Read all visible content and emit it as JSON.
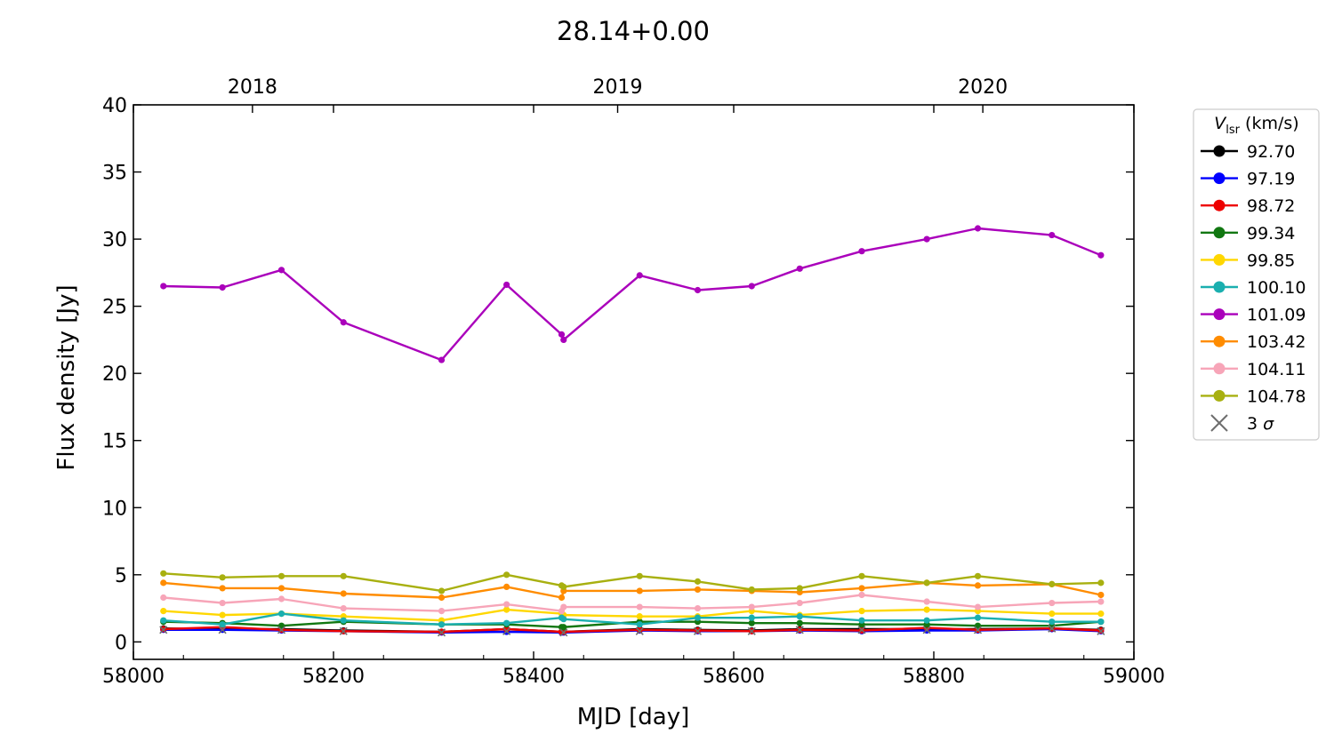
{
  "chart_data": {
    "type": "line",
    "title": "28.14+0.00",
    "xlabel": "MJD [day]",
    "ylabel": "Flux density [Jy]",
    "xlim": [
      58000,
      59000
    ],
    "ylim": [
      -1.3,
      40
    ],
    "xticks": [
      58000,
      58200,
      58400,
      58600,
      58800,
      59000
    ],
    "yticks": [
      0,
      5,
      10,
      15,
      20,
      25,
      30,
      35,
      40
    ],
    "top_axis": {
      "labels": [
        {
          "text": "2018",
          "mjd": 58119
        },
        {
          "text": "2019",
          "mjd": 58484
        },
        {
          "text": "2020",
          "mjd": 58849
        }
      ]
    },
    "grid": false,
    "legend": {
      "placement": "outside-right",
      "title_main": "V",
      "title_sub": "lsr",
      "title_unit": " (km/s)",
      "sigma_label_main": "3 ",
      "sigma_label_sym": "σ",
      "sigma_color": "#6e6e6e"
    },
    "x": [
      58030,
      58089,
      58148,
      58210,
      58308,
      58373,
      58428,
      58430,
      58506,
      58564,
      58618,
      58666,
      58728,
      58793,
      58844,
      58918,
      58967
    ],
    "series": [
      {
        "name": "92.70",
        "color": "#000000",
        "values": [
          1.0,
          0.95,
          0.95,
          0.85,
          0.75,
          0.95,
          0.75,
          0.75,
          0.95,
          0.9,
          0.85,
          0.95,
          0.95,
          0.95,
          0.95,
          1.0,
          0.9
        ]
      },
      {
        "name": "97.19",
        "color": "#0000ff",
        "values": [
          0.9,
          0.9,
          0.85,
          0.8,
          0.7,
          0.75,
          0.7,
          0.7,
          0.85,
          0.8,
          0.8,
          0.85,
          0.8,
          0.85,
          0.85,
          0.95,
          0.8
        ]
      },
      {
        "name": "98.72",
        "color": "#ee0000",
        "values": [
          0.95,
          1.1,
          0.9,
          0.8,
          0.75,
          0.95,
          0.75,
          0.75,
          0.9,
          0.85,
          0.8,
          0.9,
          0.85,
          1.05,
          0.9,
          1.0,
          0.85
        ]
      },
      {
        "name": "99.34",
        "color": "#117711",
        "values": [
          1.5,
          1.4,
          1.2,
          1.5,
          1.3,
          1.3,
          1.1,
          1.1,
          1.5,
          1.5,
          1.4,
          1.4,
          1.3,
          1.3,
          1.2,
          1.2,
          1.5
        ]
      },
      {
        "name": "99.85",
        "color": "#ffd700",
        "values": [
          2.3,
          2.0,
          2.1,
          1.9,
          1.6,
          2.4,
          2.1,
          2.0,
          1.9,
          1.9,
          2.3,
          2.0,
          2.3,
          2.4,
          2.3,
          2.1,
          2.1
        ]
      },
      {
        "name": "100.10",
        "color": "#1aafaf",
        "values": [
          1.6,
          1.3,
          2.1,
          1.6,
          1.3,
          1.4,
          1.8,
          1.7,
          1.3,
          1.8,
          1.8,
          1.9,
          1.6,
          1.6,
          1.8,
          1.5,
          1.5
        ]
      },
      {
        "name": "101.09",
        "color": "#aa00bb",
        "values": [
          26.5,
          26.4,
          27.7,
          23.8,
          21.0,
          26.6,
          22.9,
          22.5,
          27.3,
          26.2,
          26.5,
          27.8,
          29.1,
          30.0,
          30.8,
          30.3,
          28.8
        ]
      },
      {
        "name": "103.42",
        "color": "#ff8c00",
        "values": [
          4.4,
          4.0,
          4.0,
          3.6,
          3.3,
          4.1,
          3.3,
          3.8,
          3.8,
          3.9,
          3.8,
          3.7,
          4.0,
          4.4,
          4.2,
          4.3,
          3.5
        ]
      },
      {
        "name": "104.11",
        "color": "#f7a5b8",
        "values": [
          3.3,
          2.9,
          3.2,
          2.5,
          2.3,
          2.8,
          2.3,
          2.6,
          2.6,
          2.5,
          2.6,
          2.9,
          3.5,
          3.0,
          2.6,
          2.9,
          3.0
        ]
      },
      {
        "name": "104.78",
        "color": "#a8b010",
        "values": [
          5.1,
          4.8,
          4.9,
          4.9,
          3.8,
          5.0,
          4.2,
          4.1,
          4.9,
          4.5,
          3.9,
          4.0,
          4.9,
          4.4,
          4.9,
          4.3,
          4.4
        ]
      }
    ],
    "sigma_upper_limits": [
      {
        "x": 58030,
        "y": 0.9
      },
      {
        "x": 58089,
        "y": 0.9
      },
      {
        "x": 58148,
        "y": 0.9
      },
      {
        "x": 58210,
        "y": 0.8
      },
      {
        "x": 58308,
        "y": 0.7
      },
      {
        "x": 58373,
        "y": 0.8
      },
      {
        "x": 58430,
        "y": 0.7
      },
      {
        "x": 58506,
        "y": 0.8
      },
      {
        "x": 58564,
        "y": 0.8
      },
      {
        "x": 58618,
        "y": 0.8
      },
      {
        "x": 58666,
        "y": 0.9
      },
      {
        "x": 58728,
        "y": 0.9
      },
      {
        "x": 58793,
        "y": 0.9
      },
      {
        "x": 58844,
        "y": 0.9
      },
      {
        "x": 58918,
        "y": 1.0
      },
      {
        "x": 58967,
        "y": 0.8
      }
    ]
  }
}
